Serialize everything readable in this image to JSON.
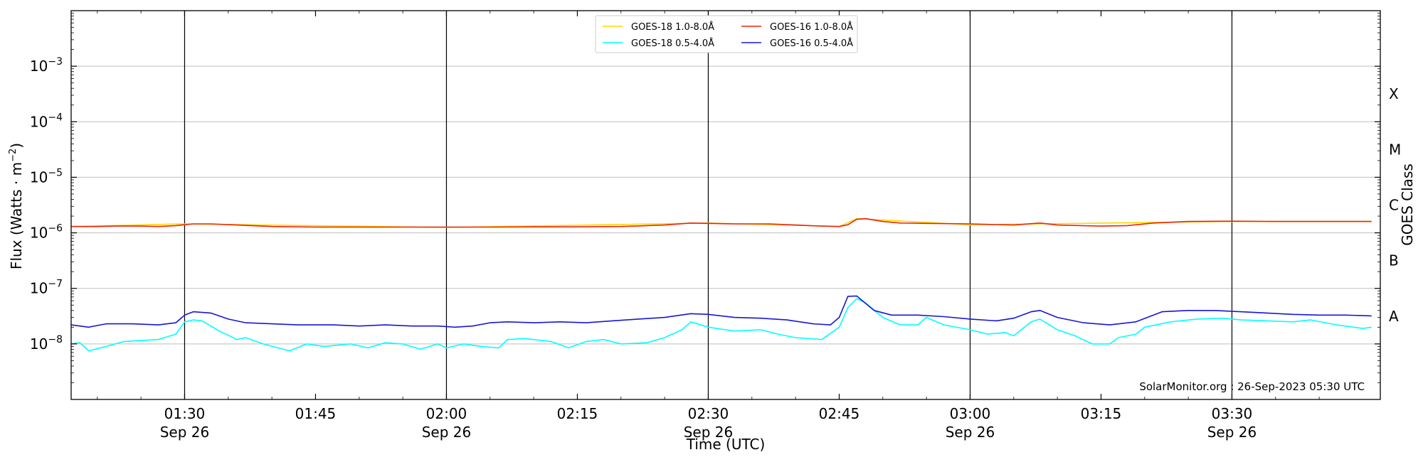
{
  "chart_data": {
    "type": "line",
    "xlabel": "Time (UTC)",
    "ylabel": "Flux (Watts · m",
    "ylabel_sup": "−2",
    "ylabel_close": ")",
    "right_label": "GOES Class",
    "y_scale": "log",
    "y_range_exp": [
      -9,
      -2
    ],
    "x_range": [
      "01:17",
      "03:47"
    ],
    "grid": "horizontal at decades, vertical at half hours",
    "legend_position": "top-center",
    "y_ticks": [
      {
        "base": "10",
        "exp": "−8",
        "value_exp": -8
      },
      {
        "base": "10",
        "exp": "−7",
        "value_exp": -7
      },
      {
        "base": "10",
        "exp": "−6",
        "value_exp": -6
      },
      {
        "base": "10",
        "exp": "−5",
        "value_exp": -5
      },
      {
        "base": "10",
        "exp": "−4",
        "value_exp": -4
      },
      {
        "base": "10",
        "exp": "−3",
        "value_exp": -3
      }
    ],
    "x_ticks": [
      {
        "time": "01:30",
        "label": "01:30",
        "date": "Sep 26"
      },
      {
        "time": "01:45",
        "label": "01:45",
        "date": ""
      },
      {
        "time": "02:00",
        "label": "02:00",
        "date": "Sep 26"
      },
      {
        "time": "02:15",
        "label": "02:15",
        "date": ""
      },
      {
        "time": "02:30",
        "label": "02:30",
        "date": "Sep 26"
      },
      {
        "time": "02:45",
        "label": "02:45",
        "date": ""
      },
      {
        "time": "03:00",
        "label": "03:00",
        "date": "Sep 26"
      },
      {
        "time": "03:15",
        "label": "03:15",
        "date": ""
      },
      {
        "time": "03:30",
        "label": "03:30",
        "date": "Sep 26"
      }
    ],
    "vlines": [
      "01:30",
      "02:00",
      "02:30",
      "03:00",
      "03:30"
    ],
    "class_labels": [
      {
        "label": "A",
        "value_exp": -7.5
      },
      {
        "label": "B",
        "value_exp": -6.5
      },
      {
        "label": "C",
        "value_exp": -5.5
      },
      {
        "label": "M",
        "value_exp": -4.5
      },
      {
        "label": "X",
        "value_exp": -3.5
      }
    ],
    "series": [
      {
        "name": "GOES-18 1.0-8.0Å",
        "color": "#ffd700",
        "points": [
          [
            "01:17",
            1.3e-06
          ],
          [
            "01:30",
            1.45e-06
          ],
          [
            "02:00",
            1.25e-06
          ],
          [
            "02:30",
            1.5e-06
          ],
          [
            "02:45",
            1.3e-06
          ],
          [
            "02:47",
            1.8e-06
          ],
          [
            "03:00",
            1.4e-06
          ],
          [
            "03:30",
            1.6e-06
          ],
          [
            "03:46",
            1.6e-06
          ]
        ]
      },
      {
        "name": "GOES-16 1.0-8.0Å",
        "color": "#e8250b",
        "points": [
          [
            "01:17",
            1.3e-06
          ],
          [
            "01:20",
            1.3e-06
          ],
          [
            "01:22",
            1.32e-06
          ],
          [
            "01:25",
            1.32e-06
          ],
          [
            "01:27",
            1.3e-06
          ],
          [
            "01:29",
            1.35e-06
          ],
          [
            "01:31",
            1.45e-06
          ],
          [
            "01:33",
            1.45e-06
          ],
          [
            "01:36",
            1.38e-06
          ],
          [
            "01:40",
            1.3e-06
          ],
          [
            "01:45",
            1.27e-06
          ],
          [
            "01:50",
            1.27e-06
          ],
          [
            "01:55",
            1.27e-06
          ],
          [
            "02:00",
            1.27e-06
          ],
          [
            "02:05",
            1.27e-06
          ],
          [
            "02:10",
            1.28e-06
          ],
          [
            "02:15",
            1.28e-06
          ],
          [
            "02:20",
            1.3e-06
          ],
          [
            "02:25",
            1.38e-06
          ],
          [
            "02:28",
            1.5e-06
          ],
          [
            "02:30",
            1.48e-06
          ],
          [
            "02:33",
            1.45e-06
          ],
          [
            "02:37",
            1.45e-06
          ],
          [
            "02:40",
            1.38e-06
          ],
          [
            "02:43",
            1.32e-06
          ],
          [
            "02:45",
            1.3e-06
          ],
          [
            "02:46",
            1.4e-06
          ],
          [
            "02:47",
            1.75e-06
          ],
          [
            "02:48",
            1.8e-06
          ],
          [
            "02:50",
            1.6e-06
          ],
          [
            "02:52",
            1.5e-06
          ],
          [
            "02:55",
            1.48e-06
          ],
          [
            "03:00",
            1.45e-06
          ],
          [
            "03:05",
            1.38e-06
          ],
          [
            "03:08",
            1.5e-06
          ],
          [
            "03:10",
            1.38e-06
          ],
          [
            "03:15",
            1.32e-06
          ],
          [
            "03:18",
            1.35e-06
          ],
          [
            "03:21",
            1.5e-06
          ],
          [
            "03:25",
            1.6e-06
          ],
          [
            "03:30",
            1.62e-06
          ],
          [
            "03:35",
            1.6e-06
          ],
          [
            "03:40",
            1.6e-06
          ],
          [
            "03:46",
            1.6e-06
          ]
        ]
      },
      {
        "name": "GOES-18 0.5-4.0Å",
        "color": "#00ffff",
        "points": [
          [
            "01:17",
            1e-08
          ],
          [
            "01:18",
            1.05e-08
          ],
          [
            "01:19",
            7.5e-09
          ],
          [
            "01:21",
            9e-09
          ],
          [
            "01:23",
            1.1e-08
          ],
          [
            "01:25",
            1.15e-08
          ],
          [
            "01:27",
            1.2e-08
          ],
          [
            "01:29",
            1.5e-08
          ],
          [
            "01:30",
            2.5e-08
          ],
          [
            "01:31",
            2.7e-08
          ],
          [
            "01:32",
            2.6e-08
          ],
          [
            "01:34",
            1.7e-08
          ],
          [
            "01:36",
            1.2e-08
          ],
          [
            "01:37",
            1.3e-08
          ],
          [
            "01:39",
            1e-08
          ],
          [
            "01:42",
            7.5e-09
          ],
          [
            "01:44",
            1e-08
          ],
          [
            "01:46",
            9e-09
          ],
          [
            "01:49",
            1e-08
          ],
          [
            "01:51",
            8.5e-09
          ],
          [
            "01:53",
            1.05e-08
          ],
          [
            "01:55",
            1e-08
          ],
          [
            "01:57",
            8e-09
          ],
          [
            "01:59",
            1e-08
          ],
          [
            "02:00",
            8.5e-09
          ],
          [
            "02:02",
            1e-08
          ],
          [
            "02:04",
            9e-09
          ],
          [
            "02:06",
            8.5e-09
          ],
          [
            "02:07",
            1.2e-08
          ],
          [
            "02:09",
            1.25e-08
          ],
          [
            "02:12",
            1.1e-08
          ],
          [
            "02:14",
            8.5e-09
          ],
          [
            "02:16",
            1.1e-08
          ],
          [
            "02:18",
            1.2e-08
          ],
          [
            "02:20",
            1e-08
          ],
          [
            "02:23",
            1.05e-08
          ],
          [
            "02:25",
            1.3e-08
          ],
          [
            "02:27",
            1.8e-08
          ],
          [
            "02:28",
            2.5e-08
          ],
          [
            "02:30",
            2e-08
          ],
          [
            "02:33",
            1.7e-08
          ],
          [
            "02:36",
            1.8e-08
          ],
          [
            "02:38",
            1.5e-08
          ],
          [
            "02:40",
            1.3e-08
          ],
          [
            "02:43",
            1.2e-08
          ],
          [
            "02:45",
            2e-08
          ],
          [
            "02:46",
            4.5e-08
          ],
          [
            "02:47",
            6.5e-08
          ],
          [
            "02:48",
            5.5e-08
          ],
          [
            "02:50",
            3e-08
          ],
          [
            "02:52",
            2.2e-08
          ],
          [
            "02:54",
            2.2e-08
          ],
          [
            "02:55",
            3e-08
          ],
          [
            "02:57",
            2.2e-08
          ],
          [
            "03:00",
            1.8e-08
          ],
          [
            "03:02",
            1.5e-08
          ],
          [
            "03:04",
            1.6e-08
          ],
          [
            "03:05",
            1.4e-08
          ],
          [
            "03:07",
            2.5e-08
          ],
          [
            "03:08",
            2.8e-08
          ],
          [
            "03:10",
            1.8e-08
          ],
          [
            "03:12",
            1.4e-08
          ],
          [
            "03:14",
            1e-08
          ],
          [
            "03:16",
            1e-08
          ],
          [
            "03:17",
            1.3e-08
          ],
          [
            "03:19",
            1.5e-08
          ],
          [
            "03:20",
            2e-08
          ],
          [
            "03:23",
            2.5e-08
          ],
          [
            "03:26",
            2.8e-08
          ],
          [
            "03:29",
            2.9e-08
          ],
          [
            "03:31",
            2.7e-08
          ],
          [
            "03:34",
            2.6e-08
          ],
          [
            "03:37",
            2.5e-08
          ],
          [
            "03:39",
            2.7e-08
          ],
          [
            "03:42",
            2.2e-08
          ],
          [
            "03:45",
            1.9e-08
          ],
          [
            "03:46",
            2e-08
          ]
        ]
      },
      {
        "name": "GOES-16 0.5-4.0Å",
        "color": "#1717d6",
        "points": [
          [
            "01:17",
            2.2e-08
          ],
          [
            "01:19",
            2e-08
          ],
          [
            "01:21",
            2.3e-08
          ],
          [
            "01:24",
            2.3e-08
          ],
          [
            "01:27",
            2.2e-08
          ],
          [
            "01:29",
            2.4e-08
          ],
          [
            "01:30",
            3.3e-08
          ],
          [
            "01:31",
            3.8e-08
          ],
          [
            "01:33",
            3.6e-08
          ],
          [
            "01:35",
            2.8e-08
          ],
          [
            "01:37",
            2.4e-08
          ],
          [
            "01:40",
            2.3e-08
          ],
          [
            "01:43",
            2.2e-08
          ],
          [
            "01:47",
            2.2e-08
          ],
          [
            "01:50",
            2.1e-08
          ],
          [
            "01:53",
            2.2e-08
          ],
          [
            "01:56",
            2.1e-08
          ],
          [
            "01:59",
            2.1e-08
          ],
          [
            "02:01",
            2e-08
          ],
          [
            "02:03",
            2.1e-08
          ],
          [
            "02:05",
            2.4e-08
          ],
          [
            "02:07",
            2.5e-08
          ],
          [
            "02:10",
            2.4e-08
          ],
          [
            "02:13",
            2.5e-08
          ],
          [
            "02:16",
            2.4e-08
          ],
          [
            "02:19",
            2.6e-08
          ],
          [
            "02:22",
            2.8e-08
          ],
          [
            "02:25",
            3e-08
          ],
          [
            "02:28",
            3.5e-08
          ],
          [
            "02:30",
            3.4e-08
          ],
          [
            "02:33",
            3e-08
          ],
          [
            "02:36",
            2.9e-08
          ],
          [
            "02:39",
            2.7e-08
          ],
          [
            "02:42",
            2.3e-08
          ],
          [
            "02:44",
            2.2e-08
          ],
          [
            "02:45",
            3e-08
          ],
          [
            "02:46",
            7.2e-08
          ],
          [
            "02:47",
            7.3e-08
          ],
          [
            "02:49",
            4e-08
          ],
          [
            "02:51",
            3.3e-08
          ],
          [
            "02:54",
            3.3e-08
          ],
          [
            "02:57",
            3.1e-08
          ],
          [
            "03:00",
            2.8e-08
          ],
          [
            "03:03",
            2.6e-08
          ],
          [
            "03:05",
            2.9e-08
          ],
          [
            "03:07",
            3.8e-08
          ],
          [
            "03:08",
            4e-08
          ],
          [
            "03:10",
            3e-08
          ],
          [
            "03:13",
            2.4e-08
          ],
          [
            "03:16",
            2.2e-08
          ],
          [
            "03:19",
            2.5e-08
          ],
          [
            "03:22",
            3.8e-08
          ],
          [
            "03:25",
            4e-08
          ],
          [
            "03:28",
            4e-08
          ],
          [
            "03:31",
            3.8e-08
          ],
          [
            "03:34",
            3.6e-08
          ],
          [
            "03:37",
            3.4e-08
          ],
          [
            "03:40",
            3.3e-08
          ],
          [
            "03:43",
            3.3e-08
          ],
          [
            "03:46",
            3.2e-08
          ]
        ]
      }
    ],
    "legend_order": [
      0,
      2,
      1,
      3
    ],
    "annotation": "SolarMonitor.org : 26-Sep-2023 05:30 UTC"
  }
}
